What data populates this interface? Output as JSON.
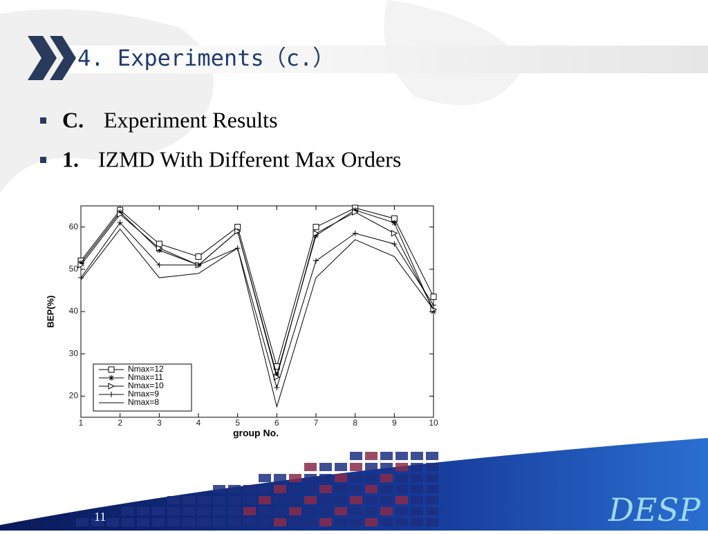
{
  "header": {
    "title": "4. Experiments（c.）"
  },
  "bullets": [
    {
      "label": "C.",
      "text": "Experiment Results"
    },
    {
      "label": "1.",
      "text": "IZMD With Different Max Orders"
    }
  ],
  "chart_data": {
    "type": "line",
    "x": [
      1,
      2,
      3,
      4,
      5,
      6,
      7,
      8,
      9,
      10
    ],
    "xlabel": "group No.",
    "ylabel": "BEP(%)",
    "xlim": [
      1,
      10
    ],
    "xticks": [
      1,
      2,
      3,
      4,
      5,
      6,
      7,
      8,
      9,
      10
    ],
    "ylim": [
      15,
      65
    ],
    "yticks": [
      20,
      30,
      40,
      50,
      60
    ],
    "grid": false,
    "legend": "lower left",
    "series": [
      {
        "name": "Nmax=12",
        "color": "#000000",
        "marker": "square",
        "values": [
          52,
          64,
          56,
          53,
          60,
          27,
          60,
          64.5,
          62,
          43.5
        ]
      },
      {
        "name": "Nmax=11",
        "color": "#000000",
        "marker": "asterisk",
        "values": [
          51.5,
          63.5,
          54.5,
          51,
          59,
          25,
          58,
          64,
          61,
          40
        ]
      },
      {
        "name": "Nmax=10",
        "color": "#000000",
        "marker": "triangle-right",
        "values": [
          51,
          63,
          55,
          51,
          59,
          24.5,
          58.5,
          63.5,
          58.5,
          40.5
        ]
      },
      {
        "name": "Nmax=9",
        "color": "#000000",
        "marker": "plus",
        "values": [
          48,
          61,
          51,
          51,
          55,
          22,
          52,
          58.5,
          56,
          41.5
        ]
      },
      {
        "name": "Nmax=8",
        "color": "#000000",
        "marker": "none",
        "values": [
          47.5,
          59.5,
          48,
          49,
          55,
          17.5,
          48,
          57,
          53,
          40.5
        ]
      }
    ]
  },
  "footer": {
    "page": "11",
    "logo": "DESP"
  }
}
